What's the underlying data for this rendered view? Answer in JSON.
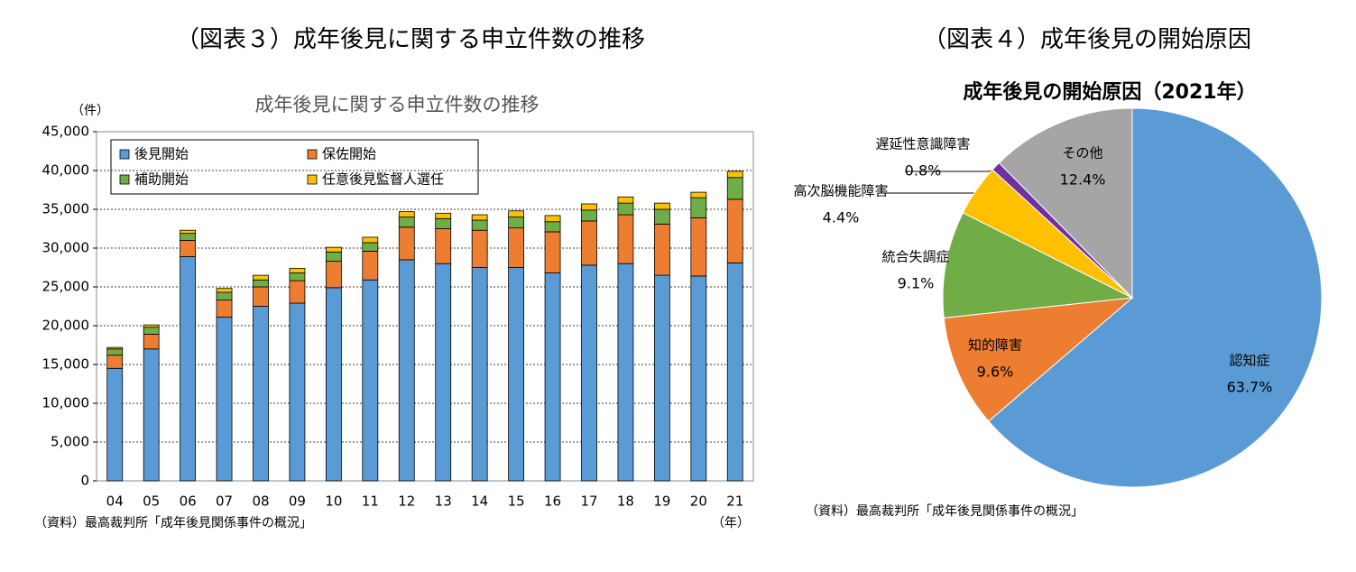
{
  "chart_data": [
    {
      "type": "bar",
      "stacked": true,
      "heading": "（図表３）成年後見に関する申立件数の推移",
      "title": "成年後見に関する申立件数の推移",
      "y_label": "（件）",
      "x_label": "（年）",
      "source": "（資料）最高裁判所「成年後見関係事件の概況」",
      "categories": [
        "04",
        "05",
        "06",
        "07",
        "08",
        "09",
        "10",
        "11",
        "12",
        "13",
        "14",
        "15",
        "16",
        "17",
        "18",
        "19",
        "20",
        "21"
      ],
      "series": [
        {
          "name": "後見開始",
          "color": "#5b9bd5",
          "values": [
            14500,
            17000,
            28900,
            21100,
            22500,
            22900,
            24900,
            25900,
            28500,
            28000,
            27500,
            27500,
            26800,
            27800,
            28000,
            26500,
            26400,
            28100
          ]
        },
        {
          "name": "保佐開始",
          "color": "#ed7d31",
          "values": [
            1700,
            1900,
            2100,
            2200,
            2500,
            2900,
            3400,
            3700,
            4200,
            4500,
            4800,
            5100,
            5300,
            5700,
            6300,
            6600,
            7500,
            8200
          ]
        },
        {
          "name": "補助開始",
          "color": "#70ad47",
          "values": [
            800,
            900,
            900,
            1000,
            900,
            1000,
            1200,
            1100,
            1300,
            1300,
            1300,
            1400,
            1300,
            1400,
            1500,
            1900,
            2600,
            2800
          ]
        },
        {
          "name": "任意後見監督人選任",
          "color": "#ffc000",
          "values": [
            200,
            300,
            400,
            500,
            600,
            600,
            600,
            700,
            700,
            700,
            700,
            800,
            800,
            800,
            800,
            800,
            700,
            800
          ]
        }
      ],
      "ylim": [
        0,
        45000
      ],
      "yticks": [
        0,
        {
          "value": 5000,
          "label": "5,000"
        },
        {
          "value": 10000,
          "label": "10,000"
        },
        {
          "value": 15000,
          "label": "15,000"
        },
        {
          "value": 20000,
          "label": "20,000"
        },
        {
          "value": 25000,
          "label": "25,000"
        },
        {
          "value": 30000,
          "label": "30,000"
        },
        {
          "value": 35000,
          "label": "35,000"
        },
        {
          "value": 40000,
          "label": "40,000"
        },
        {
          "value": 45000,
          "label": "45,000"
        }
      ],
      "grid": true
    },
    {
      "type": "pie",
      "heading": "（図表４）成年後見の開始原因",
      "title": "成年後見の開始原因（2021年）",
      "source": "（資料）最高裁判所「成年後見関係事件の概況」",
      "categories": [
        "認知症",
        "知的障害",
        "統合失調症",
        "高次脳機能障害",
        "遅延性意識障害",
        "その他"
      ],
      "values": [
        63.7,
        9.6,
        9.1,
        4.4,
        0.8,
        12.4
      ],
      "value_labels": [
        "63.7%",
        "9.6%",
        "9.1%",
        "4.4%",
        "0.8%",
        "12.4%"
      ],
      "colors": [
        "#5b9bd5",
        "#ed7d31",
        "#70ad47",
        "#ffc000",
        "#7030a0",
        "#a5a5a5"
      ]
    }
  ]
}
